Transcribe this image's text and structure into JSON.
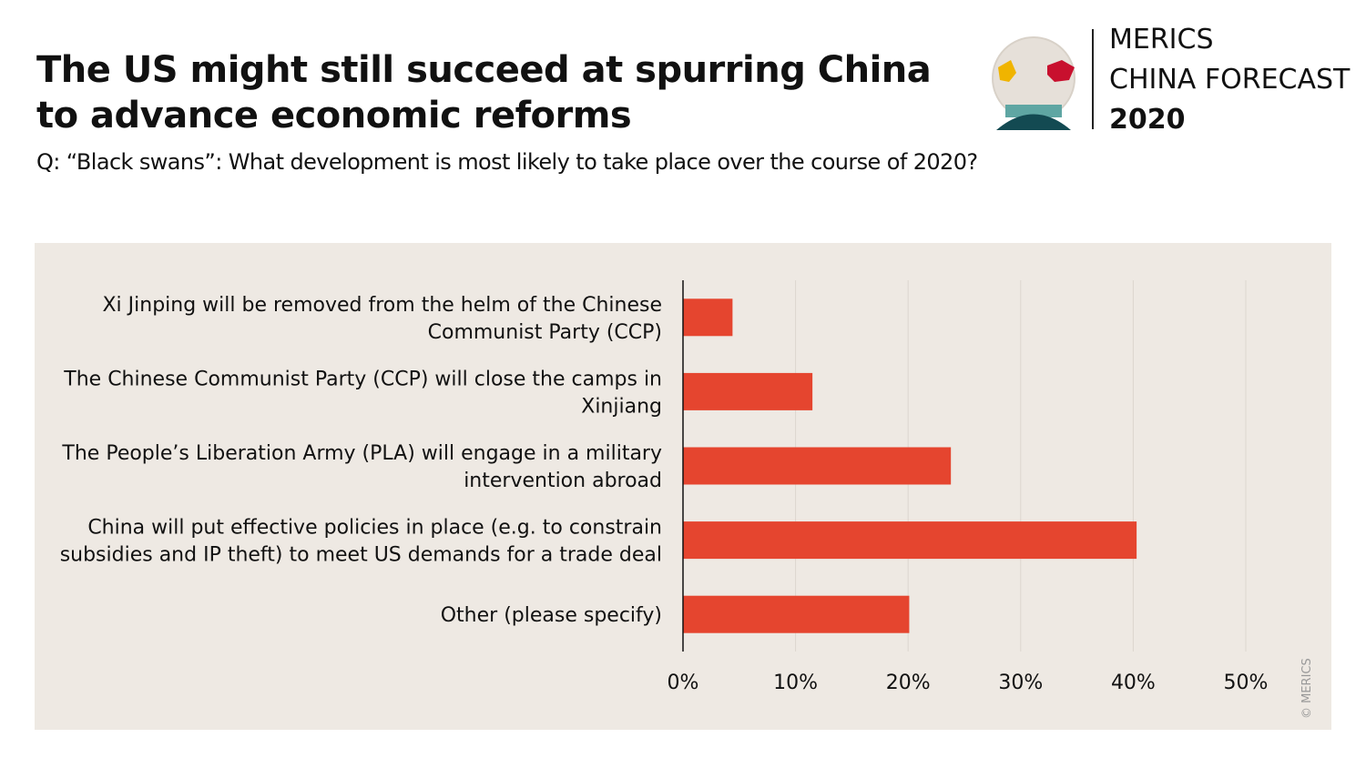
{
  "header": {
    "title": "The US might still succeed at spurring China to advance economic reforms",
    "subtitle": "Q: “Black swans”: What development is most likely to take place over the course of 2020?"
  },
  "logo": {
    "line1": "MERICS",
    "line2": "CHINA FORECAST",
    "line3": "2020"
  },
  "copyright": "© MERICS",
  "colors": {
    "bar": "#e5452f",
    "panel": "#eee9e3",
    "grid": "#dcd6cf"
  },
  "chart_data": {
    "type": "bar",
    "orientation": "horizontal",
    "title": "The US might still succeed at spurring China to advance economic reforms",
    "categories": [
      [
        "Xi Jinping will be removed from the helm of the Chinese",
        "Communist Party (CCP)"
      ],
      [
        "The Chinese Communist Party (CCP) will close the camps in",
        "Xinjiang"
      ],
      [
        "The People’s Liberation Army (PLA) will engage in a military",
        "intervention abroad"
      ],
      [
        "China will put effective policies in place (e.g. to constrain",
        "subsidies and IP theft) to meet US demands for a trade deal"
      ],
      [
        "Other (please specify)"
      ]
    ],
    "values": [
      4.4,
      11.5,
      23.8,
      40.3,
      20.1
    ],
    "xlim": [
      0,
      50
    ],
    "xticks": [
      0,
      10,
      20,
      30,
      40,
      50
    ],
    "xtick_labels": [
      "0%",
      "10%",
      "20%",
      "30%",
      "40%",
      "50%"
    ],
    "grid": true,
    "unit": "%"
  }
}
